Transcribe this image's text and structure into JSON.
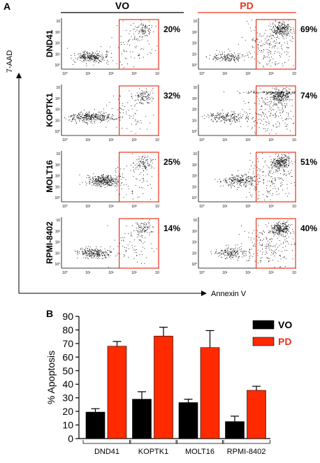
{
  "panel_a": {
    "label": "A",
    "column_headers": [
      "VO",
      "PD"
    ],
    "y_axis_label": "7-AAD",
    "x_axis_label": "Annexin V",
    "tick_labels": [
      "10°",
      "10¹",
      "10²",
      "10³",
      "10"
    ],
    "header_colors": [
      "#000000",
      "#e8331c"
    ],
    "gate_color": "#e8331c",
    "rows": [
      {
        "cell_line": "DND41",
        "percents": [
          "20%",
          "69%"
        ]
      },
      {
        "cell_line": "KOPTK1",
        "percents": [
          "32%",
          "74%"
        ]
      },
      {
        "cell_line": "MOLT16",
        "percents": [
          "25%",
          "51%"
        ]
      },
      {
        "cell_line": "RPMI-8402",
        "percents": [
          "14%",
          "40%"
        ]
      }
    ]
  },
  "panel_b": {
    "label": "B"
  },
  "chart_data": {
    "type": "bar",
    "title": "",
    "xlabel": "",
    "ylabel": "% Apoptosis",
    "ylim": [
      0,
      90
    ],
    "yticks": [
      0,
      10,
      20,
      30,
      40,
      50,
      60,
      70,
      80,
      90
    ],
    "categories": [
      "DND41",
      "KOPTK1",
      "MOLT16",
      "RPMI-8402"
    ],
    "series": [
      {
        "name": "VO",
        "color": "#000000",
        "values": [
          19.5,
          29,
          26.5,
          12.5
        ],
        "error": [
          2.5,
          5.5,
          2.5,
          4
        ]
      },
      {
        "name": "PD",
        "color": "#ff2a00",
        "values": [
          68,
          75.5,
          67,
          35.5
        ],
        "error": [
          3.5,
          6.5,
          12.5,
          3
        ]
      }
    ],
    "error_bars": true,
    "grid": false,
    "legend_position": "right"
  }
}
